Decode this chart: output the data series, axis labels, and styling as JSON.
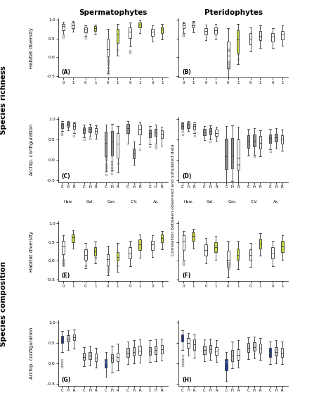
{
  "col_titles": [
    "Spermatophytes",
    "Pteridophytes"
  ],
  "left_labels": [
    "Species richness",
    "Species composition"
  ],
  "inner_left_labels": [
    "Habitat diversity",
    "Archip. configuration",
    "Habitat diversity",
    "Archip. configuration"
  ],
  "center_label": "Correlation between observed and simulated data",
  "panel_labels": [
    "(A)",
    "(B)",
    "(C)",
    "(D)",
    "(E)",
    "(F)",
    "(G)",
    "(H)"
  ],
  "archipelagos": [
    "Haw.",
    "Gal.",
    "Can.",
    "C.V.",
    "Az."
  ],
  "colors": {
    "white": "#ffffff",
    "yellow_green": "#c8d540",
    "gray_light": "#c8c8c8",
    "gray_med": "#909090",
    "blue_dark": "#1a3a9c",
    "outline": "#444444",
    "flier": "#888888"
  },
  "ylim": [
    -0.55,
    1.05
  ],
  "yticks": [
    -0.5,
    0.0,
    0.5,
    1.0
  ],
  "ytick_labels": [
    "-0.5",
    "0.0",
    "0.5",
    "1.0"
  ]
}
